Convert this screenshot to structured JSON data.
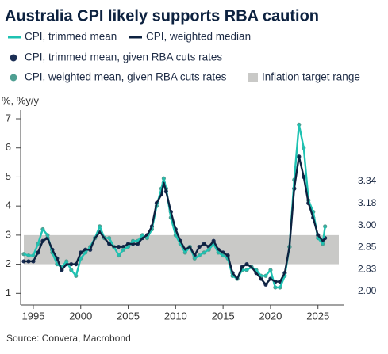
{
  "chart_data": {
    "type": "line",
    "title": "Australia CPI likely supports RBA caution",
    "y_label": "%, %y/y",
    "source": "Source: Convera, Macrobond",
    "xlim": [
      1994,
      2027.7
    ],
    "xticks": [
      1995,
      2000,
      2005,
      2010,
      2015,
      2020,
      2025
    ],
    "ylim": [
      0.6,
      7.3
    ],
    "yticks": [
      1,
      2,
      3,
      4,
      5,
      6,
      7
    ],
    "band": {
      "name": "Inflation target range",
      "range": [
        2,
        3
      ],
      "color": "#c9c9c7"
    },
    "x": [
      1994,
      1994.5,
      1995,
      1995.5,
      1996,
      1996.5,
      1997,
      1997.5,
      1998,
      1998.5,
      1999,
      1999.5,
      2000,
      2000.5,
      2001,
      2001.5,
      2002,
      2002.5,
      2003,
      2003.5,
      2004,
      2004.5,
      2005,
      2005.5,
      2006,
      2006.5,
      2007,
      2007.5,
      2008,
      2008.5,
      2008.75,
      2009,
      2009.5,
      2010,
      2010.5,
      2011,
      2011.5,
      2012,
      2012.5,
      2013,
      2013.5,
      2014,
      2014.5,
      2015,
      2015.5,
      2016,
      2016.5,
      2017,
      2017.5,
      2018,
      2018.5,
      2019,
      2019.5,
      2020,
      2020.5,
      2021,
      2021.5,
      2022,
      2022.5,
      2023,
      2023.5,
      2024,
      2024.5,
      2025,
      2025.5,
      2025.75
    ],
    "series": [
      {
        "name": "CPI, trimmed mean, given RBA cuts rates",
        "style": "dots",
        "color": "#1c2f55",
        "values": [
          2.1,
          2.1,
          2.1,
          2.4,
          2.8,
          2.9,
          2.5,
          2.2,
          1.8,
          2.0,
          2.0,
          2.0,
          2.4,
          2.5,
          2.5,
          2.9,
          3.1,
          2.9,
          2.7,
          2.6,
          2.6,
          2.6,
          2.7,
          2.7,
          2.7,
          2.9,
          3.0,
          3.3,
          4.1,
          4.4,
          4.8,
          4.5,
          3.8,
          3.2,
          2.8,
          2.5,
          2.6,
          2.3,
          2.6,
          2.7,
          2.6,
          2.8,
          2.5,
          2.4,
          2.3,
          1.7,
          1.5,
          1.9,
          2.0,
          1.9,
          1.7,
          1.5,
          1.3,
          1.5,
          1.4,
          1.4,
          1.7,
          2.6,
          4.6,
          5.7,
          5.0,
          4.1,
          3.6,
          3.0,
          2.8,
          2.9
        ]
      },
      {
        "name": "CPI, weighted mean, given RBA cuts rates",
        "style": "dots",
        "color": "#4f9f92",
        "values": [
          2.35,
          2.3,
          2.3,
          2.7,
          3.2,
          3.0,
          2.4,
          2.0,
          1.9,
          2.1,
          1.8,
          1.6,
          2.2,
          2.4,
          2.6,
          2.9,
          3.3,
          2.9,
          2.9,
          2.6,
          2.3,
          2.5,
          2.6,
          2.8,
          2.8,
          3.0,
          2.9,
          3.2,
          4.0,
          4.6,
          4.95,
          4.6,
          3.6,
          3.0,
          2.7,
          2.4,
          2.6,
          2.2,
          2.3,
          2.4,
          2.5,
          2.7,
          2.4,
          2.3,
          2.2,
          1.6,
          1.5,
          1.8,
          1.8,
          1.9,
          1.8,
          1.6,
          1.6,
          1.8,
          1.2,
          1.2,
          1.6,
          2.6,
          4.9,
          6.8,
          6.0,
          4.2,
          3.8,
          2.9,
          2.7,
          3.3
        ]
      },
      {
        "name": "CPI, trimmed mean",
        "style": "line",
        "color": "#1ec2b2",
        "values": [
          2.35,
          2.3,
          2.3,
          2.7,
          3.2,
          3.0,
          2.4,
          2.0,
          1.9,
          2.1,
          1.8,
          1.6,
          2.2,
          2.4,
          2.6,
          2.9,
          3.3,
          2.9,
          2.9,
          2.6,
          2.3,
          2.5,
          2.6,
          2.8,
          2.8,
          3.0,
          2.9,
          3.2,
          4.0,
          4.6,
          4.95,
          4.6,
          3.6,
          3.0,
          2.7,
          2.4,
          2.6,
          2.2,
          2.3,
          2.4,
          2.5,
          2.7,
          2.4,
          2.3,
          2.2,
          1.6,
          1.5,
          1.8,
          1.8,
          1.9,
          1.8,
          1.6,
          1.6,
          1.8,
          1.2,
          1.2,
          1.6,
          2.6,
          4.9,
          6.8,
          6.0,
          4.2,
          3.8,
          2.9,
          2.7,
          3.3
        ]
      },
      {
        "name": "CPI, weighted median",
        "style": "line",
        "color": "#0d2240",
        "values": [
          2.1,
          2.1,
          2.1,
          2.4,
          2.8,
          2.9,
          2.5,
          2.2,
          1.8,
          2.0,
          2.0,
          2.0,
          2.4,
          2.5,
          2.5,
          2.9,
          3.1,
          2.9,
          2.7,
          2.6,
          2.6,
          2.6,
          2.7,
          2.7,
          2.7,
          2.9,
          3.0,
          3.3,
          4.1,
          4.4,
          4.8,
          4.5,
          3.8,
          3.2,
          2.8,
          2.5,
          2.6,
          2.3,
          2.6,
          2.7,
          2.6,
          2.8,
          2.5,
          2.4,
          2.3,
          1.7,
          1.5,
          1.9,
          2.0,
          1.9,
          1.7,
          1.5,
          1.3,
          1.5,
          1.4,
          1.4,
          1.7,
          2.6,
          4.6,
          5.7,
          5.0,
          4.1,
          3.6,
          3.0,
          2.8,
          2.9
        ]
      }
    ],
    "right_labels": [
      {
        "value": 3.34,
        "color": "#e06a63"
      },
      {
        "value": 3.18,
        "color": "#8a79b8"
      },
      {
        "value": 3,
        "label": "3.00",
        "color": "#1ec2b2"
      },
      {
        "value": 2.85,
        "color": "#8a8a8a"
      },
      {
        "value": 2.83,
        "color": "#8a8a8a"
      },
      {
        "value": 2,
        "label": "2.00",
        "color": "#1ec2b2"
      }
    ]
  }
}
